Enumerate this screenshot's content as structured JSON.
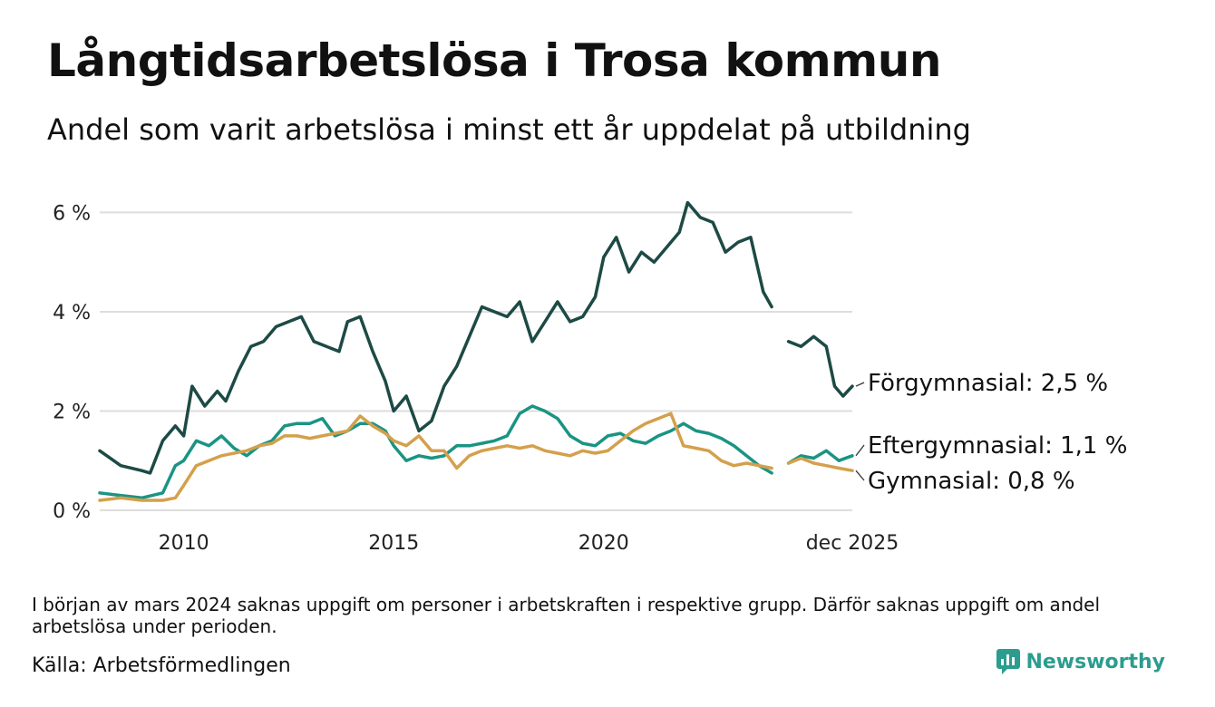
{
  "title": "Långtidsarbetslösa i Trosa kommun",
  "subtitle": "Andel som varit arbetslösa i minst ett år uppdelat på utbildning",
  "note": "I början av mars 2024 saknas uppgift om personer i arbetskraften i respektive grupp. Därför saknas uppgift om andel arbetslösa under perioden.",
  "source": "Källa: Arbetsförmedlingen",
  "brand": "Newsworthy",
  "colors": {
    "forgymnasial": "#1d4a45",
    "eftergymnasial": "#1a9483",
    "gymnasial": "#d4a04c",
    "grid": "#dddddd",
    "brand": "#2a9d8f"
  },
  "chart_data": {
    "type": "line",
    "title": "Långtidsarbetslösa i Trosa kommun",
    "xlabel": "",
    "ylabel": "",
    "xlim": [
      2008.0,
      2025.92
    ],
    "ylim": [
      0,
      6.3
    ],
    "yticks": [
      0,
      2,
      4,
      6
    ],
    "ytick_labels": [
      "0 %",
      "2 %",
      "4 %",
      "6 %"
    ],
    "xticks": [
      2010,
      2015,
      2020,
      2025.92
    ],
    "xtick_labels": [
      "2010",
      "2015",
      "2020",
      "dec 2025"
    ],
    "grid": true,
    "legend": "end-of-line labels",
    "series": [
      {
        "name": "Förgymnasial",
        "end_label": "Förgymnasial: 2,5 %",
        "color": "#1d4a45",
        "x": [
          2008.0,
          2008.5,
          2009.0,
          2009.2,
          2009.5,
          2009.8,
          2010.0,
          2010.2,
          2010.5,
          2010.8,
          2011.0,
          2011.3,
          2011.6,
          2011.9,
          2012.2,
          2012.5,
          2012.8,
          2013.1,
          2013.4,
          2013.7,
          2013.9,
          2014.2,
          2014.5,
          2014.8,
          2015.0,
          2015.3,
          2015.6,
          2015.9,
          2016.2,
          2016.5,
          2016.8,
          2017.1,
          2017.4,
          2017.7,
          2018.0,
          2018.3,
          2018.6,
          2018.9,
          2019.2,
          2019.5,
          2019.8,
          2020.0,
          2020.3,
          2020.6,
          2020.9,
          2021.2,
          2021.5,
          2021.8,
          2022.0,
          2022.3,
          2022.6,
          2022.9,
          2023.2,
          2023.5,
          2023.8,
          2024.0,
          null,
          2024.4,
          2024.7,
          2025.0,
          2025.3,
          2025.5,
          2025.7,
          2025.92
        ],
        "values": [
          1.2,
          0.9,
          0.8,
          0.75,
          1.4,
          1.7,
          1.5,
          2.5,
          2.1,
          2.4,
          2.2,
          2.8,
          3.3,
          3.4,
          3.7,
          3.8,
          3.9,
          3.4,
          3.3,
          3.2,
          3.8,
          3.9,
          3.2,
          2.6,
          2.0,
          2.3,
          1.6,
          1.8,
          2.5,
          2.9,
          3.5,
          4.1,
          4.0,
          3.9,
          4.2,
          3.4,
          3.8,
          4.2,
          3.8,
          3.9,
          4.3,
          5.1,
          5.5,
          4.8,
          5.2,
          5.0,
          5.3,
          5.6,
          6.2,
          5.9,
          5.8,
          5.2,
          5.4,
          5.5,
          4.4,
          4.1,
          null,
          3.4,
          3.3,
          3.5,
          3.3,
          2.5,
          2.3,
          2.5
        ]
      },
      {
        "name": "Eftergymnasial",
        "end_label": "Eftergymnasial: 1,1 %",
        "color": "#1a9483",
        "x": [
          2008.0,
          2008.5,
          2009.0,
          2009.5,
          2009.8,
          2010.0,
          2010.3,
          2010.6,
          2010.9,
          2011.2,
          2011.5,
          2011.8,
          2012.1,
          2012.4,
          2012.7,
          2013.0,
          2013.3,
          2013.6,
          2013.9,
          2014.2,
          2014.5,
          2014.8,
          2015.0,
          2015.3,
          2015.6,
          2015.9,
          2016.2,
          2016.5,
          2016.8,
          2017.1,
          2017.4,
          2017.7,
          2018.0,
          2018.3,
          2018.6,
          2018.9,
          2019.2,
          2019.5,
          2019.8,
          2020.1,
          2020.4,
          2020.7,
          2021.0,
          2021.3,
          2021.6,
          2021.9,
          2022.2,
          2022.5,
          2022.8,
          2023.1,
          2023.4,
          2023.7,
          2024.0,
          null,
          2024.4,
          2024.7,
          2025.0,
          2025.3,
          2025.6,
          2025.92
        ],
        "values": [
          0.35,
          0.3,
          0.25,
          0.35,
          0.9,
          1.0,
          1.4,
          1.3,
          1.5,
          1.25,
          1.1,
          1.3,
          1.4,
          1.7,
          1.75,
          1.75,
          1.85,
          1.5,
          1.6,
          1.75,
          1.75,
          1.6,
          1.3,
          1.0,
          1.1,
          1.05,
          1.1,
          1.3,
          1.3,
          1.35,
          1.4,
          1.5,
          1.95,
          2.1,
          2.0,
          1.85,
          1.5,
          1.35,
          1.3,
          1.5,
          1.55,
          1.4,
          1.35,
          1.5,
          1.6,
          1.75,
          1.6,
          1.55,
          1.45,
          1.3,
          1.1,
          0.9,
          0.75,
          null,
          0.95,
          1.1,
          1.05,
          1.2,
          1.0,
          1.1
        ]
      },
      {
        "name": "Gymnasial",
        "end_label": "Gymnasial: 0,8 %",
        "color": "#d4a04c",
        "x": [
          2008.0,
          2008.5,
          2009.0,
          2009.5,
          2009.8,
          2010.0,
          2010.3,
          2010.6,
          2010.9,
          2011.2,
          2011.5,
          2011.8,
          2012.1,
          2012.4,
          2012.7,
          2013.0,
          2013.3,
          2013.6,
          2013.9,
          2014.2,
          2014.5,
          2014.8,
          2015.0,
          2015.3,
          2015.6,
          2015.9,
          2016.2,
          2016.5,
          2016.8,
          2017.1,
          2017.4,
          2017.7,
          2018.0,
          2018.3,
          2018.6,
          2018.9,
          2019.2,
          2019.5,
          2019.8,
          2020.1,
          2020.4,
          2020.7,
          2021.0,
          2021.3,
          2021.6,
          2021.9,
          2022.2,
          2022.5,
          2022.8,
          2023.1,
          2023.4,
          2023.7,
          2024.0,
          null,
          2024.4,
          2024.7,
          2025.0,
          2025.3,
          2025.6,
          2025.92
        ],
        "values": [
          0.2,
          0.25,
          0.2,
          0.2,
          0.25,
          0.5,
          0.9,
          1.0,
          1.1,
          1.15,
          1.2,
          1.3,
          1.35,
          1.5,
          1.5,
          1.45,
          1.5,
          1.55,
          1.6,
          1.9,
          1.7,
          1.55,
          1.4,
          1.3,
          1.5,
          1.2,
          1.2,
          0.85,
          1.1,
          1.2,
          1.25,
          1.3,
          1.25,
          1.3,
          1.2,
          1.15,
          1.1,
          1.2,
          1.15,
          1.2,
          1.4,
          1.6,
          1.75,
          1.85,
          1.95,
          1.3,
          1.25,
          1.2,
          1.0,
          0.9,
          0.95,
          0.9,
          0.85,
          null,
          0.95,
          1.05,
          0.95,
          0.9,
          0.85,
          0.8
        ]
      }
    ]
  }
}
